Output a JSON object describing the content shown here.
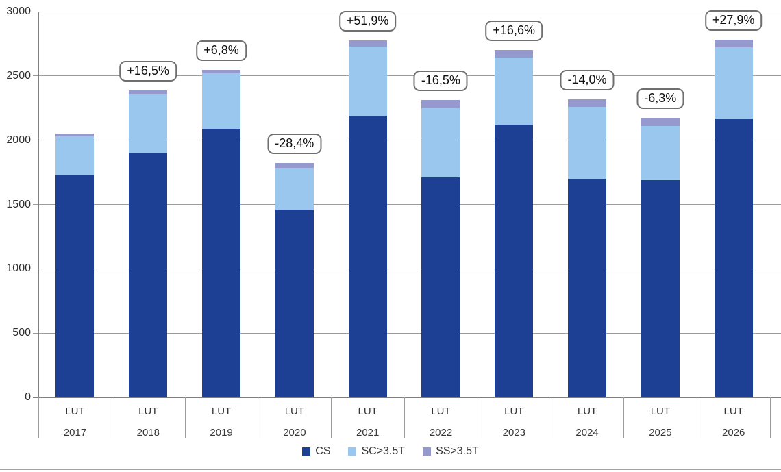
{
  "chart_data": {
    "type": "bar",
    "stacked": true,
    "title": "",
    "xlabel": "",
    "ylabel": "",
    "categories_prefix": "LUT",
    "categories": [
      "2017",
      "2018",
      "2019",
      "2020",
      "2021",
      "2022",
      "2023",
      "2024",
      "2025",
      "2026"
    ],
    "series": [
      {
        "name": "CS",
        "color": "#1e4094",
        "values": [
          1725,
          1895,
          2090,
          1460,
          2190,
          1710,
          2120,
          1700,
          1690,
          2170
        ]
      },
      {
        "name": "SC>3.5T",
        "color": "#99c7ee",
        "values": [
          305,
          465,
          430,
          325,
          540,
          540,
          525,
          560,
          420,
          555
        ]
      },
      {
        "name": "SS>3.5T",
        "color": "#9699cd",
        "values": [
          20,
          25,
          25,
          40,
          45,
          65,
          55,
          60,
          65,
          55
        ]
      }
    ],
    "bar_change_labels": [
      "",
      "+16,5%",
      "+6,8%",
      "-28,4%",
      "+51,9%",
      "-16,5%",
      "+16,6%",
      "-14,0%",
      "-6,3%",
      "+27,9%"
    ],
    "ylim": [
      0,
      3000
    ],
    "yticks": [
      0,
      500,
      1000,
      1500,
      2000,
      2500,
      3000
    ],
    "grid": true,
    "legend_position": "bottom"
  },
  "style": {
    "grid_color": "#9c9c9c",
    "axis_color": "#7f7f7f",
    "separator_color": "#9c9c9c",
    "label_box_border": "#6f6f6f",
    "bottom_rule_color": "#a3a3a3"
  }
}
